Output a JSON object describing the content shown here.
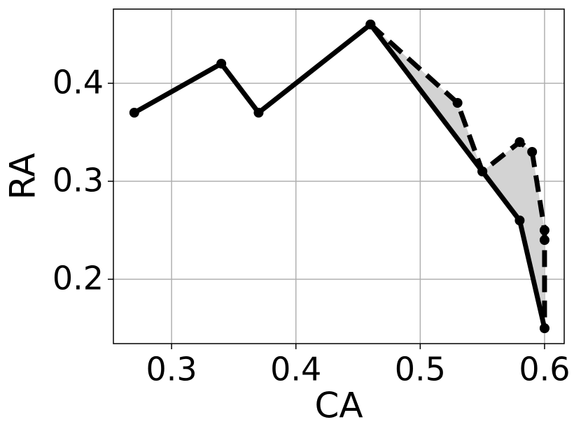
{
  "chart_data": {
    "type": "line",
    "x_label": "CA",
    "y_label": "RA",
    "series": [
      {
        "color": "#000000",
        "linestyle": "solid",
        "x": [
          0.27,
          0.34,
          0.37,
          0.46,
          0.55,
          0.58,
          0.6
        ],
        "values": [
          0.37,
          0.42,
          0.37,
          0.46,
          0.31,
          0.26,
          0.15
        ]
      },
      {
        "color": "#000000",
        "linestyle": "dashed",
        "x": [
          0.46,
          0.53,
          0.55,
          0.58,
          0.59,
          0.6,
          0.6,
          0.6
        ],
        "values": [
          0.46,
          0.38,
          0.31,
          0.34,
          0.33,
          0.25,
          0.24,
          0.15
        ]
      }
    ],
    "fill_color": "#d3d3d3",
    "xlim": [
      0.2532,
      0.6158
    ],
    "xticks": [
      0.3,
      0.4,
      0.5,
      0.6
    ],
    "ylim": [
      0.1343,
      0.4757
    ],
    "yticks": [
      0.2,
      0.3,
      0.4
    ],
    "grid": true
  }
}
